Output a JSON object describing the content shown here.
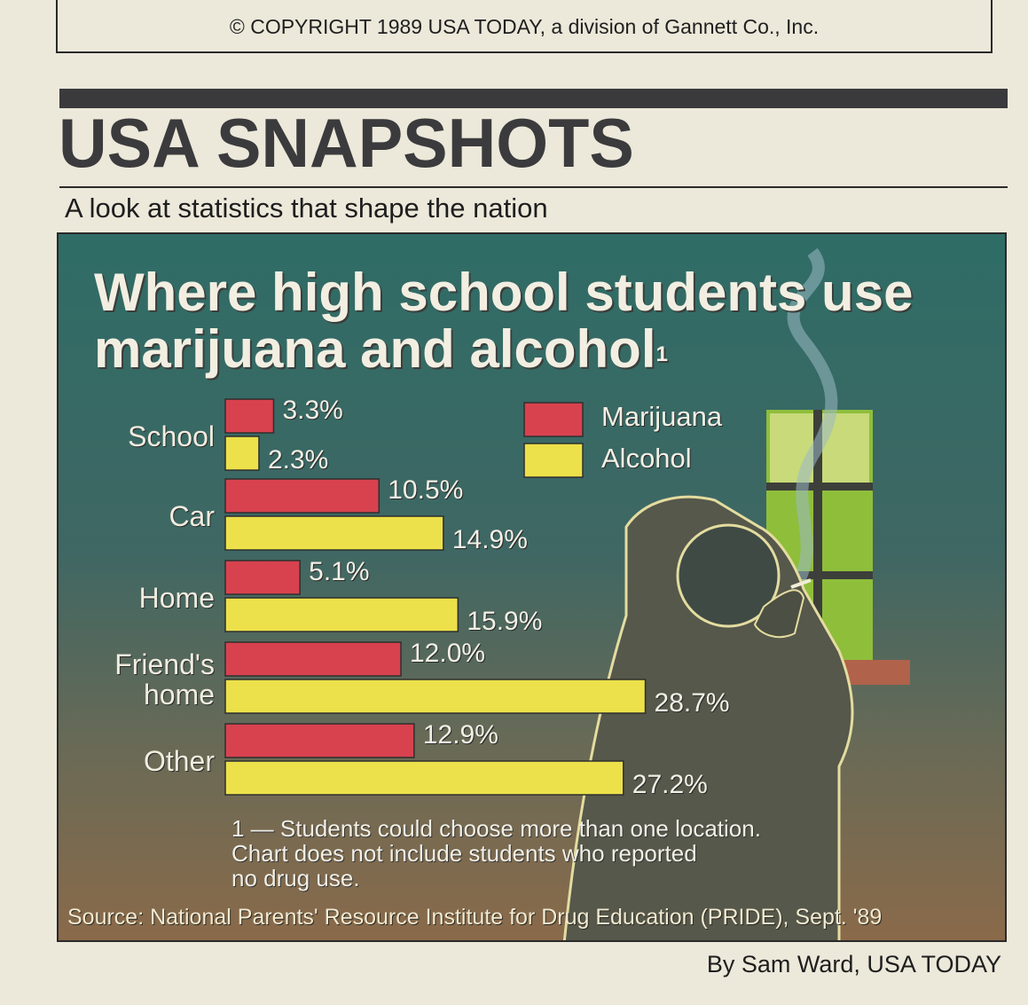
{
  "copyright": "© COPYRIGHT 1989 USA TODAY, a division of Gannett Co., Inc.",
  "masthead": "USA SNAPSHOTS",
  "tagline": "A look at statistics that shape the nation",
  "byline": "By Sam Ward, USA TODAY",
  "chart_data": {
    "type": "bar",
    "orientation": "horizontal",
    "title": "Where high school students use marijuana and alcohol",
    "title_footnote_mark": "1",
    "categories": [
      "School",
      "Car",
      "Home",
      "Friend's home",
      "Other"
    ],
    "category_lines": [
      [
        "School"
      ],
      [
        "Car"
      ],
      [
        "Home"
      ],
      [
        "Friend's",
        "home"
      ],
      [
        "Other"
      ]
    ],
    "series": [
      {
        "name": "Marijuana",
        "color": "#d8424f",
        "values": [
          3.3,
          10.5,
          5.1,
          12.0,
          12.9
        ],
        "labels": [
          "3.3%",
          "10.5%",
          "5.1%",
          "12.0%",
          "12.9%"
        ]
      },
      {
        "name": "Alcohol",
        "color": "#ece14a",
        "values": [
          2.3,
          14.9,
          15.9,
          28.7,
          27.2
        ],
        "labels": [
          "2.3%",
          "14.9%",
          "15.9%",
          "28.7%",
          "27.2%"
        ]
      }
    ],
    "unit": "%",
    "legend_position": "top-right",
    "grid": false,
    "footnote": "1 — Students could choose more than one location.\nChart does not include students who reported\nno drug use.",
    "source": "Source: National Parents' Resource Institute for Drug Education (PRIDE), Sept. '89"
  }
}
